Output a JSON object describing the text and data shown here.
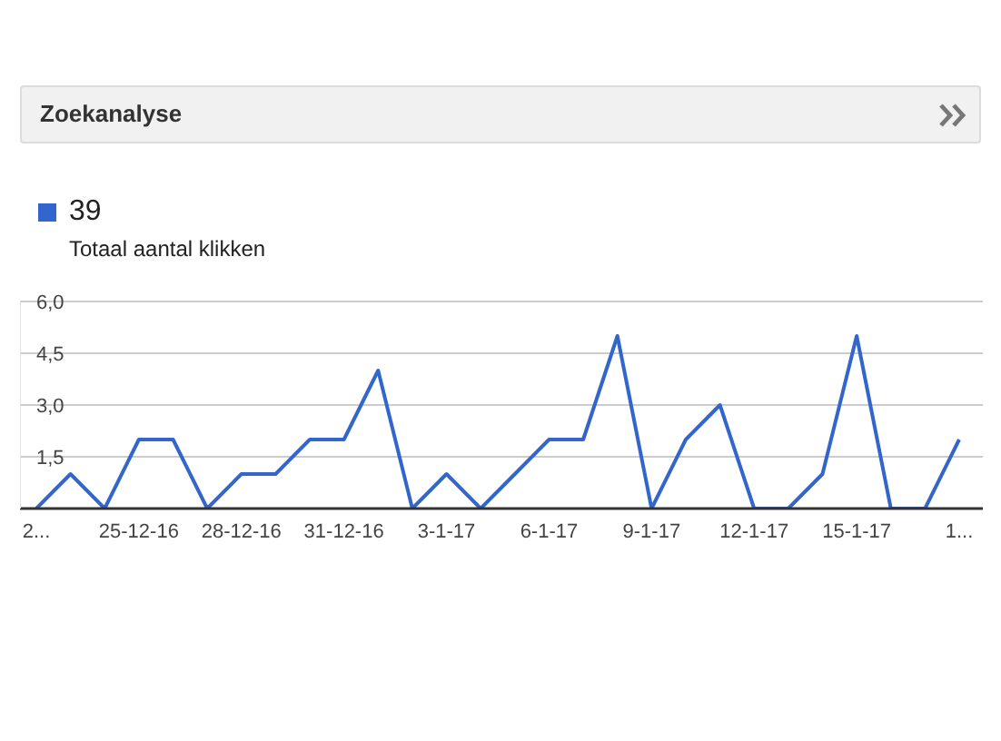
{
  "chart_data": {
    "type": "line",
    "title": "Zoekanalyse",
    "annotations": [
      "39"
    ],
    "categories": [
      "2...",
      null,
      null,
      "25-12-16",
      null,
      null,
      "28-12-16",
      null,
      null,
      "31-12-16",
      null,
      null,
      "3-1-17",
      null,
      null,
      "6-1-17",
      null,
      null,
      "9-1-17",
      null,
      null,
      "12-1-17",
      null,
      null,
      "15-1-17",
      null,
      null,
      "1..."
    ],
    "series": [
      {
        "name": "Totaal aantal klikken",
        "color": "#3366cc",
        "values": [
          0,
          1,
          0,
          2,
          2,
          0,
          1,
          1,
          2,
          2,
          4,
          0,
          1,
          0,
          1,
          2,
          2,
          5,
          0,
          2,
          3,
          0,
          0,
          1,
          5,
          0,
          0,
          2
        ]
      }
    ],
    "ylim": [
      0,
      6
    ],
    "yticks": [
      {
        "value": 0,
        "label": null
      },
      {
        "value": 1.5,
        "label": "1,5"
      },
      {
        "value": 3,
        "label": "3,0"
      },
      {
        "value": 4.5,
        "label": "4,5"
      },
      {
        "value": 6,
        "label": "6,0"
      }
    ],
    "grid": "y",
    "legend": "top left",
    "marker": "none",
    "line_style": "solid"
  }
}
